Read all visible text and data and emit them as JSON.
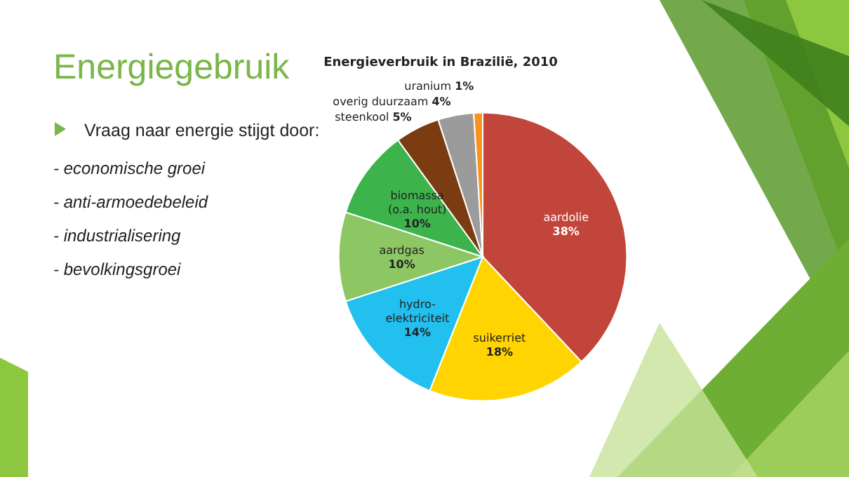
{
  "chart_data": {
    "type": "pie",
    "title": "Energieverbruik in Brazilië, 2010",
    "categories": [
      "aardolie",
      "suikerriet",
      "hydro-elektriciteit",
      "aardgas",
      "biomassa (o.a. hout)",
      "steenkool",
      "overig duurzaam",
      "uranium"
    ],
    "values": [
      38,
      18,
      14,
      10,
      10,
      5,
      4,
      1
    ],
    "value_labels": [
      "38%",
      "18%",
      "14%",
      "10%",
      "10%",
      "5%",
      "4%",
      "1%"
    ],
    "colors": [
      "#c1453b",
      "#ffd400",
      "#22c0ee",
      "#8dc764",
      "#3cb44b",
      "#7b3c12",
      "#9b9b9b",
      "#f7941d"
    ],
    "annotations": [
      "Energiegebruik",
      "Vraag naar energie stijgt door:",
      "- economische groei",
      "- anti-armoedebeleid",
      "- industrialisering",
      "- bevolkingsgroei"
    ]
  }
}
